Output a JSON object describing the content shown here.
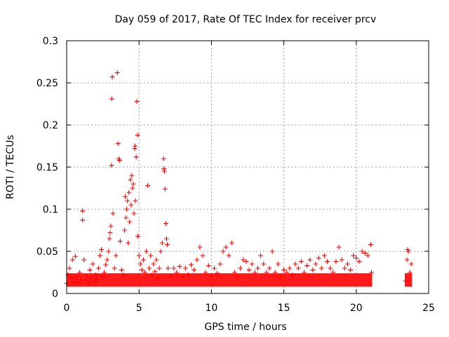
{
  "chart_data": {
    "type": "scatter",
    "title": "Day 059 of 2017, Rate Of TEC Index for receiver prcv",
    "xlabel": "GPS time / hours",
    "ylabel": "ROTI / TECUs",
    "xlim": [
      0,
      25
    ],
    "ylim": [
      0,
      0.3
    ],
    "xticks": [
      0,
      5,
      10,
      15,
      20,
      25
    ],
    "xtick_labels": [
      "0",
      "5",
      "10",
      "15",
      "20",
      "25"
    ],
    "yticks": [
      0,
      0.05,
      0.1,
      0.15,
      0.2,
      0.25,
      0.3
    ],
    "ytick_labels": [
      "0",
      "0.05",
      "0.1",
      "0.15",
      "0.2",
      "0.25",
      "0.3"
    ],
    "grid": true,
    "marker": "+",
    "color": "#ff0000",
    "series": [
      {
        "values": [
          [
            0.0,
            0.012
          ],
          [
            0.1,
            0.022
          ],
          [
            0.2,
            0.03
          ],
          [
            0.3,
            0.018
          ],
          [
            0.4,
            0.04
          ],
          [
            0.5,
            0.014
          ],
          [
            0.6,
            0.044
          ],
          [
            0.7,
            0.02
          ],
          [
            0.8,
            0.013
          ],
          [
            0.9,
            0.025
          ],
          [
            1.0,
            0.016
          ],
          [
            1.1,
            0.098
          ],
          [
            1.1,
            0.087
          ],
          [
            1.2,
            0.04
          ],
          [
            1.3,
            0.015
          ],
          [
            1.4,
            0.02
          ],
          [
            1.5,
            0.012
          ],
          [
            1.6,
            0.028
          ],
          [
            1.7,
            0.018
          ],
          [
            1.8,
            0.035
          ],
          [
            1.9,
            0.014
          ],
          [
            2.0,
            0.022
          ],
          [
            2.1,
            0.017
          ],
          [
            2.2,
            0.03
          ],
          [
            2.3,
            0.045
          ],
          [
            2.4,
            0.052
          ],
          [
            2.5,
            0.02
          ],
          [
            2.6,
            0.025
          ],
          [
            2.7,
            0.034
          ],
          [
            2.8,
            0.04
          ],
          [
            2.9,
            0.05
          ],
          [
            2.95,
            0.065
          ],
          [
            3.0,
            0.072
          ],
          [
            3.05,
            0.08
          ],
          [
            3.1,
            0.152
          ],
          [
            3.12,
            0.231
          ],
          [
            3.15,
            0.257
          ],
          [
            3.2,
            0.095
          ],
          [
            3.3,
            0.03
          ],
          [
            3.4,
            0.045
          ],
          [
            3.5,
            0.262
          ],
          [
            3.55,
            0.178
          ],
          [
            3.6,
            0.16
          ],
          [
            3.65,
            0.158
          ],
          [
            3.7,
            0.062
          ],
          [
            3.8,
            0.028
          ],
          [
            3.9,
            0.022
          ],
          [
            4.0,
            0.075
          ],
          [
            4.05,
            0.115
          ],
          [
            4.1,
            0.09
          ],
          [
            4.15,
            0.1
          ],
          [
            4.2,
            0.11
          ],
          [
            4.25,
            0.06
          ],
          [
            4.3,
            0.12
          ],
          [
            4.35,
            0.085
          ],
          [
            4.4,
            0.135
          ],
          [
            4.45,
            0.105
          ],
          [
            4.5,
            0.14
          ],
          [
            4.55,
            0.125
          ],
          [
            4.6,
            0.13
          ],
          [
            4.65,
            0.095
          ],
          [
            4.7,
            0.172
          ],
          [
            4.72,
            0.175
          ],
          [
            4.75,
            0.11
          ],
          [
            4.8,
            0.162
          ],
          [
            4.85,
            0.228
          ],
          [
            4.9,
            0.188
          ],
          [
            4.92,
            0.068
          ],
          [
            5.0,
            0.045
          ],
          [
            5.1,
            0.035
          ],
          [
            5.2,
            0.028
          ],
          [
            5.3,
            0.04
          ],
          [
            5.4,
            0.025
          ],
          [
            5.5,
            0.05
          ],
          [
            5.6,
            0.128
          ],
          [
            5.7,
            0.03
          ],
          [
            5.8,
            0.045
          ],
          [
            5.9,
            0.022
          ],
          [
            6.0,
            0.035
          ],
          [
            6.1,
            0.026
          ],
          [
            6.2,
            0.04
          ],
          [
            6.3,
            0.018
          ],
          [
            6.4,
            0.03
          ],
          [
            6.5,
            0.05
          ],
          [
            6.6,
            0.06
          ],
          [
            6.7,
            0.16
          ],
          [
            6.72,
            0.148
          ],
          [
            6.75,
            0.145
          ],
          [
            6.8,
            0.124
          ],
          [
            6.85,
            0.083
          ],
          [
            6.9,
            0.065
          ],
          [
            6.95,
            0.058
          ],
          [
            7.0,
            0.03
          ],
          [
            7.2,
            0.02
          ],
          [
            7.4,
            0.03
          ],
          [
            7.6,
            0.025
          ],
          [
            7.8,
            0.032
          ],
          [
            8.0,
            0.02
          ],
          [
            8.2,
            0.03
          ],
          [
            8.4,
            0.022
          ],
          [
            8.6,
            0.034
          ],
          [
            8.8,
            0.028
          ],
          [
            9.0,
            0.04
          ],
          [
            9.2,
            0.055
          ],
          [
            9.4,
            0.045
          ],
          [
            9.6,
            0.025
          ],
          [
            9.8,
            0.033
          ],
          [
            10.0,
            0.02
          ],
          [
            10.2,
            0.03
          ],
          [
            10.4,
            0.024
          ],
          [
            10.6,
            0.035
          ],
          [
            10.8,
            0.05
          ],
          [
            11.0,
            0.055
          ],
          [
            11.2,
            0.045
          ],
          [
            11.4,
            0.06
          ],
          [
            11.6,
            0.025
          ],
          [
            11.8,
            0.02
          ],
          [
            12.0,
            0.03
          ],
          [
            12.2,
            0.04
          ],
          [
            12.4,
            0.038
          ],
          [
            12.6,
            0.028
          ],
          [
            12.8,
            0.035
          ],
          [
            13.0,
            0.025
          ],
          [
            13.2,
            0.03
          ],
          [
            13.4,
            0.045
          ],
          [
            13.6,
            0.035
          ],
          [
            13.8,
            0.025
          ],
          [
            14.0,
            0.03
          ],
          [
            14.2,
            0.05
          ],
          [
            14.4,
            0.025
          ],
          [
            14.6,
            0.035
          ],
          [
            14.8,
            0.02
          ],
          [
            15.0,
            0.028
          ],
          [
            15.2,
            0.025
          ],
          [
            15.4,
            0.03
          ],
          [
            15.6,
            0.022
          ],
          [
            15.8,
            0.035
          ],
          [
            16.0,
            0.03
          ],
          [
            16.2,
            0.038
          ],
          [
            16.4,
            0.025
          ],
          [
            16.6,
            0.033
          ],
          [
            16.8,
            0.04
          ],
          [
            17.0,
            0.028
          ],
          [
            17.2,
            0.035
          ],
          [
            17.4,
            0.042
          ],
          [
            17.6,
            0.03
          ],
          [
            17.8,
            0.045
          ],
          [
            18.0,
            0.038
          ],
          [
            18.2,
            0.03
          ],
          [
            18.4,
            0.025
          ],
          [
            18.6,
            0.038
          ],
          [
            18.8,
            0.055
          ],
          [
            19.0,
            0.04
          ],
          [
            19.2,
            0.03
          ],
          [
            19.4,
            0.035
          ],
          [
            19.6,
            0.028
          ],
          [
            19.8,
            0.045
          ],
          [
            20.0,
            0.042
          ],
          [
            20.2,
            0.038
          ],
          [
            20.4,
            0.05
          ],
          [
            20.6,
            0.048
          ],
          [
            20.8,
            0.045
          ],
          [
            21.0,
            0.058
          ],
          [
            21.05,
            0.025
          ],
          [
            23.4,
            0.015
          ],
          [
            23.5,
            0.04
          ],
          [
            23.55,
            0.052
          ],
          [
            23.6,
            0.05
          ],
          [
            23.7,
            0.025
          ],
          [
            23.8,
            0.035
          ]
        ]
      }
    ]
  }
}
